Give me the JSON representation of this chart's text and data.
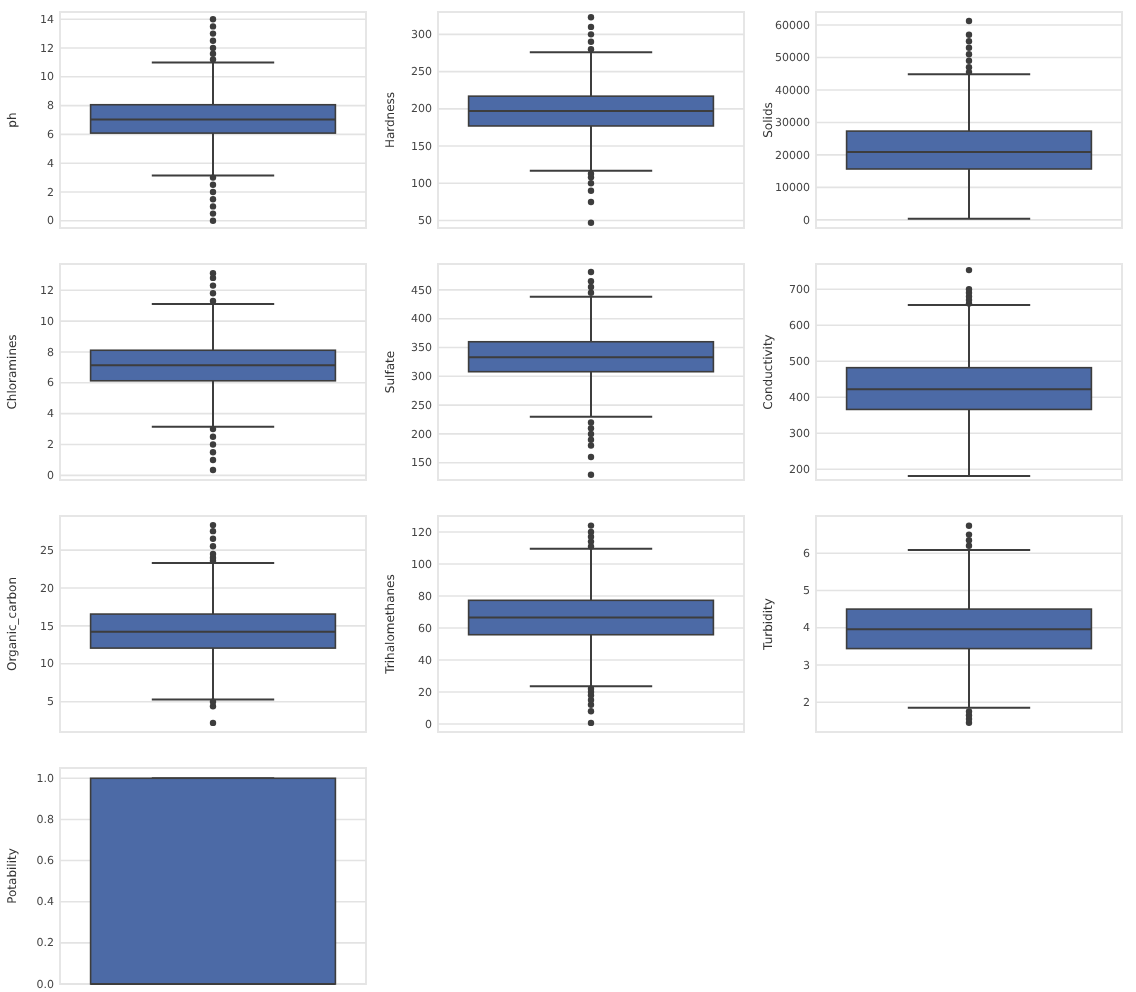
{
  "chart_data": [
    {
      "type": "box",
      "ylabel": "ph",
      "categories": [
        null
      ],
      "color": "#4c6aa6",
      "grid": "y",
      "ylim": [
        -0.5,
        14.5
      ],
      "yticks": [
        0,
        2,
        4,
        6,
        8,
        10,
        12,
        14
      ],
      "boxes": [
        {
          "low": 3.14,
          "q1": 6.09,
          "median": 7.04,
          "q3": 8.06,
          "high": 11.0,
          "outliers": [
            0,
            0.5,
            1,
            1.5,
            2,
            2.5,
            3,
            11.2,
            11.6,
            12,
            12.5,
            13,
            13.5,
            14
          ]
        }
      ]
    },
    {
      "type": "box",
      "ylabel": "Hardness",
      "categories": [
        null
      ],
      "color": "#4c6aa6",
      "grid": "y",
      "ylim": [
        40,
        330
      ],
      "yticks": [
        50,
        100,
        150,
        200,
        250,
        300
      ],
      "boxes": [
        {
          "low": 117,
          "q1": 177,
          "median": 197,
          "q3": 217,
          "high": 276,
          "outliers": [
            47,
            75,
            90,
            100,
            108,
            113,
            280,
            290,
            300,
            310,
            323
          ]
        }
      ]
    },
    {
      "type": "box",
      "ylabel": "Solids",
      "categories": [
        null
      ],
      "color": "#4c6aa6",
      "grid": "y",
      "ylim": [
        -2500,
        64000
      ],
      "yticks": [
        0,
        10000,
        20000,
        30000,
        40000,
        50000,
        60000
      ],
      "boxes": [
        {
          "low": 320,
          "q1": 15667,
          "median": 20928,
          "q3": 27333,
          "high": 44832,
          "outliers": [
            45500,
            47000,
            49000,
            51000,
            53000,
            55000,
            57000,
            61227
          ]
        }
      ]
    },
    {
      "type": "box",
      "ylabel": "Chloramines",
      "categories": [
        null
      ],
      "color": "#4c6aa6",
      "grid": "y",
      "ylim": [
        -0.3,
        13.7
      ],
      "yticks": [
        0,
        2,
        4,
        6,
        8,
        10,
        12
      ],
      "boxes": [
        {
          "low": 3.15,
          "q1": 6.13,
          "median": 7.13,
          "q3": 8.11,
          "high": 11.1,
          "outliers": [
            0.35,
            1,
            1.5,
            2,
            2.5,
            3,
            11.3,
            11.8,
            12.3,
            12.8,
            13.1
          ]
        }
      ]
    },
    {
      "type": "box",
      "ylabel": "Sulfate",
      "categories": [
        null
      ],
      "color": "#4c6aa6",
      "grid": "y",
      "ylim": [
        120,
        495
      ],
      "yticks": [
        150,
        200,
        250,
        300,
        350,
        400,
        450
      ],
      "boxes": [
        {
          "low": 230,
          "q1": 308,
          "median": 333,
          "q3": 360,
          "high": 438,
          "outliers": [
            129,
            160,
            180,
            190,
            200,
            210,
            220,
            445,
            455,
            465,
            481
          ]
        }
      ]
    },
    {
      "type": "box",
      "ylabel": "Conductivity",
      "categories": [
        null
      ],
      "color": "#4c6aa6",
      "grid": "y",
      "ylim": [
        170,
        770
      ],
      "yticks": [
        200,
        300,
        400,
        500,
        600,
        700
      ],
      "boxes": [
        {
          "low": 181,
          "q1": 366,
          "median": 422,
          "q3": 482,
          "high": 656,
          "outliers": [
            660,
            670,
            680,
            690,
            700,
            753
          ]
        }
      ]
    },
    {
      "type": "box",
      "ylabel": "Organic_carbon",
      "categories": [
        null
      ],
      "color": "#4c6aa6",
      "grid": "y",
      "ylim": [
        1,
        29.5
      ],
      "yticks": [
        5,
        10,
        15,
        20,
        25
      ],
      "boxes": [
        {
          "low": 5.3,
          "q1": 12.07,
          "median": 14.22,
          "q3": 16.56,
          "high": 23.3,
          "outliers": [
            2.2,
            4.4,
            5,
            23.6,
            24,
            24.5,
            25.5,
            26.5,
            27.5,
            28.3
          ]
        }
      ]
    },
    {
      "type": "box",
      "ylabel": "Trihalomethanes",
      "categories": [
        null
      ],
      "color": "#4c6aa6",
      "grid": "y",
      "ylim": [
        -5,
        130
      ],
      "yticks": [
        0,
        20,
        40,
        60,
        80,
        100,
        120
      ],
      "boxes": [
        {
          "low": 23.6,
          "q1": 55.8,
          "median": 66.6,
          "q3": 77.3,
          "high": 109.6,
          "outliers": [
            0.7,
            8,
            12,
            15,
            18,
            20,
            22,
            111,
            114,
            117,
            120,
            124
          ]
        }
      ]
    },
    {
      "type": "box",
      "ylabel": "Turbidity",
      "categories": [
        null
      ],
      "color": "#4c6aa6",
      "grid": "y",
      "ylim": [
        1.2,
        7
      ],
      "yticks": [
        2,
        3,
        4,
        5,
        6
      ],
      "boxes": [
        {
          "low": 1.85,
          "q1": 3.44,
          "median": 3.96,
          "q3": 4.5,
          "high": 6.09,
          "outliers": [
            1.45,
            1.55,
            1.65,
            1.75,
            6.2,
            6.35,
            6.5,
            6.74
          ]
        }
      ]
    },
    {
      "type": "box",
      "ylabel": "Potability",
      "categories": [
        null
      ],
      "color": "#4c6aa6",
      "grid": "y",
      "ylim": [
        0,
        1.05
      ],
      "yticks": [
        {
          "value": 0,
          "label": "0.0"
        },
        {
          "value": 0.2,
          "label": "0.2"
        },
        {
          "value": 0.4,
          "label": "0.4"
        },
        {
          "value": 0.6,
          "label": "0.6"
        },
        {
          "value": 0.8,
          "label": "0.8"
        },
        {
          "value": 1,
          "label": "1.0"
        }
      ],
      "boxes": [
        {
          "low": 0,
          "q1": 0,
          "median": 0,
          "q3": 1,
          "high": 1
        }
      ]
    }
  ]
}
